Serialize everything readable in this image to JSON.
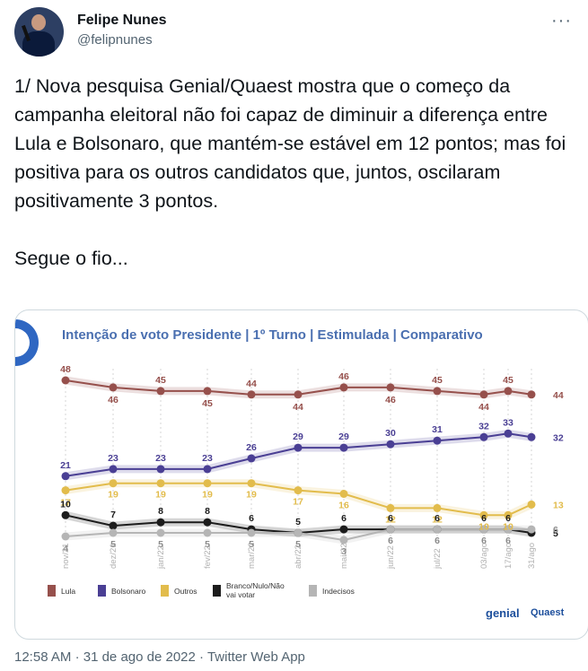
{
  "author": {
    "name": "Felipe Nunes",
    "handle": "@felipnunes"
  },
  "tweet": {
    "paragraph1": "1/ Nova pesquisa Genial/Quaest mostra que o começo da campanha eleitoral não foi capaz de diminuir a diferença entre Lula e Bolsonaro, que mantém-se estável em 12 pontos; mas foi positiva para os outros candidatos que, juntos, oscilaram positivamente 3 pontos.",
    "paragraph2": "Segue o fio..."
  },
  "footer": {
    "time": "12:58 AM",
    "date": "31 de ago de 2022",
    "source": "Twitter Web App",
    "separator": "·"
  },
  "icons": [
    "more-icon",
    "avatar",
    "quaest-logo-arc"
  ],
  "colors": {
    "lula": "#96504c",
    "bolsonaro": "#4a3f94",
    "outros": "#e2bc4c",
    "branco": "#1c1c1c",
    "indecisos": "#b5b5b5",
    "title": "#4a6fb0",
    "accent_blue": "#2f67c2"
  },
  "chart_data": {
    "type": "line",
    "title": "Intenção de voto Presidente | 1º Turno | Estimulada | Comparativo",
    "x": [
      "nov/21",
      "dez/21",
      "jan/22",
      "fev/22",
      "mar/22",
      "abr/22",
      "mai/22",
      "jun/22",
      "jul/22",
      "03/ago",
      "17/ago",
      "31/ago"
    ],
    "series": [
      {
        "name": "Lula",
        "values": [
          48,
          46,
          45,
          45,
          44,
          44,
          46,
          46,
          45,
          44,
          45,
          44
        ]
      },
      {
        "name": "Bolsonaro",
        "values": [
          21,
          23,
          23,
          23,
          26,
          29,
          29,
          30,
          31,
          32,
          33,
          32
        ]
      },
      {
        "name": "Outros",
        "values": [
          17,
          19,
          19,
          19,
          19,
          17,
          16,
          12,
          12,
          10,
          10,
          13
        ]
      },
      {
        "name": "Branco/Nulo/Não vai votar",
        "values": [
          10,
          7,
          8,
          8,
          6,
          5,
          6,
          6,
          6,
          6,
          6,
          5
        ]
      },
      {
        "name": "Indecisos",
        "values": [
          4,
          5,
          5,
          5,
          5,
          5,
          3,
          6,
          6,
          6,
          6,
          6
        ]
      }
    ],
    "legend_position": "bottom",
    "ylim": [
      0,
      52
    ],
    "grid": "vertical-dashed",
    "brand": [
      "genial",
      "Quaest"
    ]
  }
}
